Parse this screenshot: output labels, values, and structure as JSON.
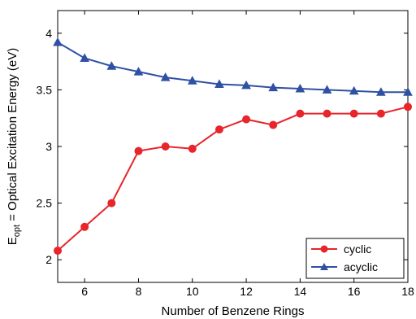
{
  "chart_data": {
    "type": "line",
    "xlabel": "Number of Benzene Rings",
    "ylabel": {
      "base": "E",
      "subscript": "opt",
      "rest": " = Optical Excitation Energy (eV)"
    },
    "xlim": [
      5,
      18
    ],
    "ylim": [
      1.8,
      4.2
    ],
    "xticks": [
      6,
      8,
      10,
      12,
      14,
      16,
      18
    ],
    "yticks": [
      2,
      2.5,
      3,
      3.5,
      4
    ],
    "xtick_labels": [
      "6",
      "8",
      "10",
      "12",
      "14",
      "16",
      "18"
    ],
    "ytick_labels": [
      "2",
      "2.5",
      "3",
      "3.5",
      "4"
    ],
    "x": [
      5,
      6,
      7,
      8,
      9,
      10,
      11,
      12,
      13,
      14,
      15,
      16,
      17,
      18
    ],
    "series": [
      {
        "name": "cyclic",
        "color": "#e8252b",
        "marker": "circle",
        "values": [
          2.08,
          2.29,
          2.5,
          2.96,
          3.0,
          2.98,
          3.15,
          3.24,
          3.19,
          3.29,
          3.29,
          3.29,
          3.29,
          3.35
        ]
      },
      {
        "name": "acyclic",
        "color": "#2f50a4",
        "marker": "triangle",
        "values": [
          3.92,
          3.78,
          3.71,
          3.66,
          3.61,
          3.58,
          3.55,
          3.54,
          3.52,
          3.51,
          3.5,
          3.49,
          3.48,
          3.48
        ]
      }
    ],
    "legend_position": "bottom-right",
    "grid": false
  }
}
